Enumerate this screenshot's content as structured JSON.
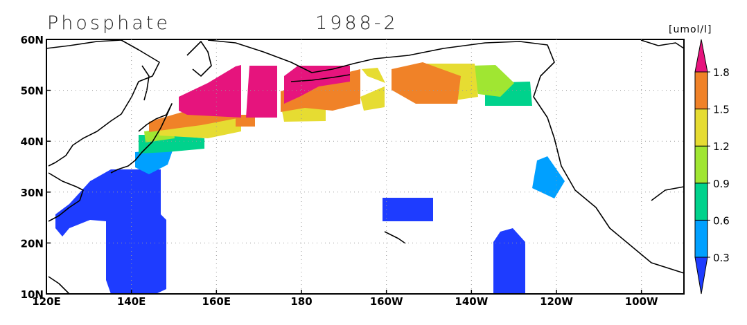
{
  "header": {
    "title": "Phosphate",
    "period": "1988-2"
  },
  "map": {
    "lon_ticks": [
      "120E",
      "140E",
      "160E",
      "180",
      "160W",
      "140W",
      "120W",
      "100W"
    ],
    "lat_ticks": [
      "10N",
      "20N",
      "30N",
      "40N",
      "50N",
      "60N"
    ]
  },
  "colorbar": {
    "unit": "[umol/l]",
    "levels": [
      0.3,
      0.6,
      0.9,
      1.2,
      1.5,
      1.8
    ],
    "colors": [
      "#1e3cff",
      "#00a0ff",
      "#00d28c",
      "#a0e632",
      "#e6dc32",
      "#f08228",
      "#e6147d"
    ]
  }
}
